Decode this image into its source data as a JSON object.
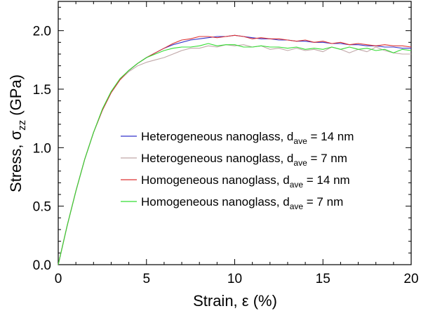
{
  "chart_data": {
    "type": "line",
    "xlabel": "Strain, ε (%)",
    "ylabel": "Stress, σzz (GPa)",
    "xlim": [
      0,
      20
    ],
    "ylim": [
      0,
      2.25
    ],
    "x_ticks": [
      "0",
      "5",
      "10",
      "15",
      "20"
    ],
    "y_ticks": [
      "0.0",
      "0.5",
      "1.0",
      "1.5",
      "2.0"
    ],
    "grid": false,
    "legend_position": "center-right",
    "series": [
      {
        "name": "Heterogeneous nanoglass, dave = 14 nm",
        "color": "#3333cc",
        "x": [
          0,
          0.5,
          1,
          1.5,
          2,
          2.5,
          3,
          3.5,
          4,
          4.5,
          5,
          5.5,
          6,
          6.5,
          7,
          7.5,
          8,
          8.5,
          9,
          9.5,
          10,
          10.5,
          11,
          11.5,
          12,
          12.5,
          13,
          13.5,
          14,
          14.5,
          15,
          15.5,
          16,
          16.5,
          17,
          17.5,
          18,
          18.5,
          19,
          19.5,
          20
        ],
        "y": [
          0,
          0.33,
          0.63,
          0.9,
          1.13,
          1.32,
          1.47,
          1.58,
          1.66,
          1.72,
          1.77,
          1.81,
          1.85,
          1.88,
          1.9,
          1.92,
          1.93,
          1.94,
          1.95,
          1.95,
          1.96,
          1.95,
          1.94,
          1.93,
          1.93,
          1.92,
          1.92,
          1.91,
          1.91,
          1.9,
          1.9,
          1.89,
          1.89,
          1.88,
          1.88,
          1.87,
          1.87,
          1.86,
          1.86,
          1.85,
          1.85
        ]
      },
      {
        "name": "Heterogeneous nanoglass, dave = 7 nm",
        "color": "#c0a8a8",
        "x": [
          0,
          0.5,
          1,
          1.5,
          2,
          2.5,
          3,
          3.5,
          4,
          4.5,
          5,
          5.5,
          6,
          6.5,
          7,
          7.5,
          8,
          8.5,
          9,
          9.5,
          10,
          10.5,
          11,
          11.5,
          12,
          12.5,
          13,
          13.5,
          14,
          14.5,
          15,
          15.5,
          16,
          16.5,
          17,
          17.5,
          18,
          18.5,
          19,
          19.5,
          20
        ],
        "y": [
          0,
          0.33,
          0.63,
          0.9,
          1.13,
          1.32,
          1.47,
          1.58,
          1.65,
          1.7,
          1.73,
          1.75,
          1.77,
          1.8,
          1.83,
          1.85,
          1.85,
          1.87,
          1.86,
          1.88,
          1.87,
          1.88,
          1.86,
          1.87,
          1.84,
          1.85,
          1.83,
          1.85,
          1.83,
          1.84,
          1.82,
          1.86,
          1.84,
          1.81,
          1.84,
          1.82,
          1.86,
          1.83,
          1.81,
          1.8,
          1.8
        ]
      },
      {
        "name": "Homogeneous nanoglass, dave = 14 nm",
        "color": "#dd3333",
        "x": [
          0,
          0.5,
          1,
          1.5,
          2,
          2.5,
          3,
          3.5,
          4,
          4.5,
          5,
          5.5,
          6,
          6.5,
          7,
          7.5,
          8,
          8.5,
          9,
          9.5,
          10,
          10.5,
          11,
          11.5,
          12,
          12.5,
          13,
          13.5,
          14,
          14.5,
          15,
          15.5,
          16,
          16.5,
          17,
          17.5,
          18,
          18.5,
          19,
          19.5,
          20
        ],
        "y": [
          0,
          0.33,
          0.63,
          0.9,
          1.13,
          1.32,
          1.47,
          1.58,
          1.66,
          1.72,
          1.77,
          1.81,
          1.85,
          1.89,
          1.92,
          1.93,
          1.95,
          1.95,
          1.94,
          1.95,
          1.96,
          1.95,
          1.93,
          1.94,
          1.93,
          1.93,
          1.92,
          1.91,
          1.92,
          1.9,
          1.91,
          1.89,
          1.9,
          1.88,
          1.89,
          1.88,
          1.87,
          1.88,
          1.87,
          1.87,
          1.86
        ]
      },
      {
        "name": "Homogeneous nanoglass, dave = 7 nm",
        "color": "#33dd33",
        "x": [
          0,
          0.5,
          1,
          1.5,
          2,
          2.5,
          3,
          3.5,
          4,
          4.5,
          5,
          5.5,
          6,
          6.5,
          7,
          7.5,
          8,
          8.5,
          9,
          9.5,
          10,
          10.5,
          11,
          11.5,
          12,
          12.5,
          13,
          13.5,
          14,
          14.5,
          15,
          15.5,
          16,
          16.5,
          17,
          17.5,
          18,
          18.5,
          19,
          19.5,
          20
        ],
        "y": [
          0,
          0.33,
          0.63,
          0.9,
          1.13,
          1.33,
          1.48,
          1.59,
          1.66,
          1.72,
          1.77,
          1.8,
          1.83,
          1.85,
          1.86,
          1.86,
          1.87,
          1.89,
          1.87,
          1.88,
          1.88,
          1.86,
          1.86,
          1.87,
          1.86,
          1.86,
          1.85,
          1.86,
          1.84,
          1.85,
          1.84,
          1.86,
          1.84,
          1.86,
          1.84,
          1.85,
          1.83,
          1.84,
          1.81,
          1.84,
          1.83
        ]
      }
    ],
    "legend": [
      {
        "label": "Heterogeneous nanoglass, d",
        "sub": "ave",
        "suffix": " = 14 nm"
      },
      {
        "label": "Heterogeneous nanoglass, d",
        "sub": "ave",
        "suffix": " = 7 nm"
      },
      {
        "label": "Homogeneous nanoglass, d",
        "sub": "ave",
        "suffix": " = 14 nm"
      },
      {
        "label": "Homogeneous nanoglass, d",
        "sub": "ave",
        "suffix": " = 7 nm"
      }
    ]
  }
}
